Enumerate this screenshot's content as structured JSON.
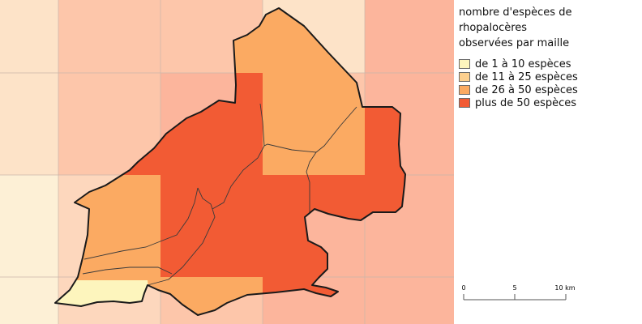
{
  "legend": {
    "title_lines": [
      "nombre d'espèces de",
      "rhopalocères",
      "observées par maille"
    ],
    "items": [
      {
        "label": "de 1 à 10 espèces",
        "color": "#fdf5bd"
      },
      {
        "label": "de 11 à 25 espèces",
        "color": "#fdd08f"
      },
      {
        "label": "de 26 à 50 espèces",
        "color": "#fbaa62"
      },
      {
        "label": "plus de 50 espèces",
        "color": "#f25b34"
      }
    ]
  },
  "scale": {
    "labels": [
      "0",
      "5",
      "10 km"
    ]
  },
  "background_colors": {
    "pale_peach": "#fde3c8",
    "peach": "#fdd7bd",
    "light_salmon": "#fdc6aa",
    "salmon": "#fcb59c",
    "pale_yellow": "#fdf0d6"
  },
  "outline_color": "#1a1a1a"
}
